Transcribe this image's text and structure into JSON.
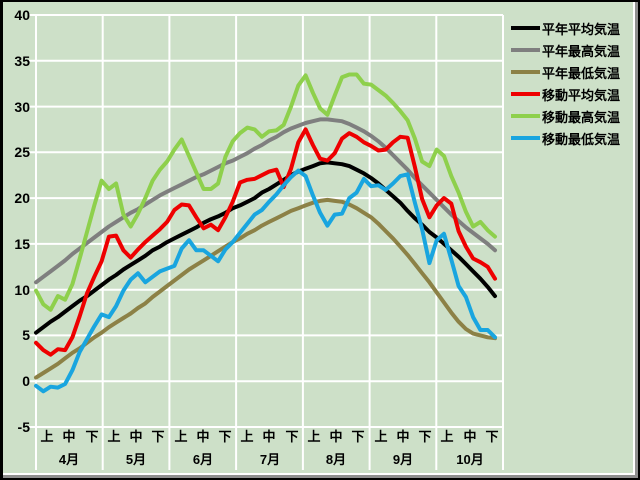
{
  "window": {
    "background_color": "#cde0c8",
    "grid_color": "#ffffff",
    "text_color": "#000000"
  },
  "chart_data": {
    "type": "line",
    "title": "",
    "grid": true,
    "legend_position": "right",
    "x_axis": {
      "months": [
        "4月",
        "5月",
        "6月",
        "7月",
        "8月",
        "9月",
        "10月"
      ],
      "periods": [
        "上",
        "中",
        "下"
      ]
    },
    "y_axis": {
      "ticks": [
        40,
        35,
        30,
        25,
        20,
        15,
        10,
        5,
        0,
        -5
      ],
      "max": 40,
      "min": -5
    },
    "series": [
      {
        "name": "平年平均気温",
        "color": "#000000",
        "style": "smooth",
        "values": [
          5.3,
          5.9,
          6.5,
          7.0,
          7.6,
          8.2,
          8.8,
          9.3,
          9.9,
          10.5,
          11.1,
          11.6,
          12.2,
          12.7,
          13.2,
          13.7,
          14.3,
          14.7,
          15.2,
          15.6,
          16.0,
          16.4,
          16.8,
          17.3,
          17.7,
          18.0,
          18.4,
          18.9,
          19.2,
          19.6,
          20.0,
          20.6,
          21.0,
          21.5,
          22.0,
          22.5,
          22.9,
          23.2,
          23.5,
          23.8,
          23.9,
          23.8,
          23.7,
          23.5,
          23.1,
          22.7,
          22.2,
          21.6,
          20.9,
          20.2,
          19.5,
          18.6,
          17.8,
          17.1,
          16.3,
          15.7,
          15.0,
          14.3,
          13.6,
          12.8,
          12.0,
          11.2,
          10.3,
          9.3
        ]
      },
      {
        "name": "平年最高気温",
        "color": "#7f7f7f",
        "style": "smooth",
        "values": [
          10.8,
          11.4,
          12.0,
          12.6,
          13.2,
          13.9,
          14.5,
          15.1,
          15.7,
          16.3,
          16.9,
          17.4,
          17.9,
          18.4,
          18.8,
          19.3,
          19.8,
          20.3,
          20.7,
          21.1,
          21.5,
          21.9,
          22.3,
          22.6,
          23.0,
          23.4,
          23.8,
          24.1,
          24.5,
          24.9,
          25.4,
          25.8,
          26.3,
          26.7,
          27.2,
          27.6,
          27.9,
          28.2,
          28.4,
          28.6,
          28.6,
          28.5,
          28.4,
          28.1,
          27.7,
          27.3,
          26.8,
          26.2,
          25.5,
          24.7,
          23.9,
          23.1,
          22.2,
          21.4,
          20.6,
          19.8,
          19.0,
          18.2,
          17.5,
          16.8,
          16.2,
          15.6,
          15.0,
          14.3
        ]
      },
      {
        "name": "平年最低気温",
        "color": "#8c8146",
        "style": "smooth",
        "values": [
          0.4,
          0.9,
          1.4,
          1.9,
          2.5,
          3.1,
          3.6,
          4.2,
          4.8,
          5.3,
          5.9,
          6.4,
          6.9,
          7.4,
          8.0,
          8.5,
          9.2,
          9.8,
          10.4,
          11.0,
          11.6,
          12.2,
          12.7,
          13.2,
          13.7,
          14.2,
          14.7,
          15.2,
          15.6,
          16.1,
          16.5,
          17.0,
          17.4,
          17.8,
          18.2,
          18.6,
          18.9,
          19.2,
          19.5,
          19.7,
          19.8,
          19.7,
          19.6,
          19.3,
          18.9,
          18.4,
          17.9,
          17.2,
          16.4,
          15.6,
          14.7,
          13.8,
          12.8,
          11.8,
          10.8,
          9.7,
          8.6,
          7.5,
          6.5,
          5.7,
          5.2,
          5.0,
          4.8,
          4.7
        ]
      },
      {
        "name": "移動平均気温",
        "color": "#ee0000",
        "style": "jagged",
        "values": [
          4.2,
          3.4,
          2.9,
          3.5,
          3.4,
          4.8,
          7.1,
          9.6,
          11.4,
          13.1,
          15.8,
          15.9,
          14.3,
          13.5,
          14.4,
          15.2,
          15.9,
          16.6,
          17.4,
          18.7,
          19.3,
          19.2,
          17.9,
          16.7,
          17.1,
          16.5,
          17.9,
          19.6,
          21.7,
          22.0,
          22.1,
          22.5,
          22.9,
          23.1,
          21.2,
          23.2,
          26.1,
          27.5,
          25.8,
          24.3,
          24.1,
          24.9,
          26.5,
          27.1,
          26.7,
          26.1,
          25.7,
          25.2,
          25.3,
          26.1,
          26.7,
          26.6,
          23.4,
          19.9,
          17.9,
          19.2,
          20.0,
          19.4,
          16.4,
          14.7,
          13.4,
          13.0,
          12.5,
          11.2
        ]
      },
      {
        "name": "移動最高気温",
        "color": "#8ed04c",
        "style": "jagged",
        "values": [
          9.9,
          8.4,
          7.8,
          9.3,
          8.9,
          10.6,
          13.4,
          16.3,
          19.2,
          21.9,
          21.0,
          21.6,
          18.2,
          16.9,
          18.3,
          20.0,
          21.9,
          23.1,
          24.0,
          25.3,
          26.4,
          24.6,
          22.8,
          21.0,
          21.0,
          21.6,
          24.5,
          26.2,
          27.1,
          27.7,
          27.5,
          26.7,
          27.3,
          27.4,
          28.0,
          30.0,
          32.3,
          33.4,
          31.5,
          29.8,
          29.1,
          31.2,
          33.2,
          33.5,
          33.5,
          32.5,
          32.4,
          31.8,
          31.2,
          30.4,
          29.5,
          28.5,
          26.5,
          24.0,
          23.5,
          25.3,
          24.6,
          22.4,
          20.6,
          18.5,
          16.9,
          17.4,
          16.5,
          15.8
        ]
      },
      {
        "name": "移動最低気温",
        "color": "#19a5df",
        "style": "jagged",
        "values": [
          -0.5,
          -1.1,
          -0.6,
          -0.7,
          -0.3,
          1.2,
          3.2,
          4.6,
          6.0,
          7.3,
          7.0,
          8.2,
          9.9,
          11.1,
          11.8,
          10.8,
          11.4,
          12.0,
          12.3,
          12.6,
          14.5,
          15.4,
          14.3,
          14.3,
          13.7,
          13.1,
          14.4,
          15.2,
          16.2,
          17.2,
          18.2,
          18.7,
          19.6,
          20.4,
          21.4,
          22.3,
          23.0,
          22.4,
          20.3,
          18.4,
          17.0,
          18.2,
          18.3,
          20.0,
          20.6,
          22.1,
          21.3,
          21.4,
          20.9,
          21.6,
          22.4,
          22.6,
          19.5,
          16.6,
          12.9,
          15.4,
          16.1,
          13.3,
          10.4,
          9.2,
          7.0,
          5.6,
          5.6,
          4.8
        ]
      }
    ]
  }
}
